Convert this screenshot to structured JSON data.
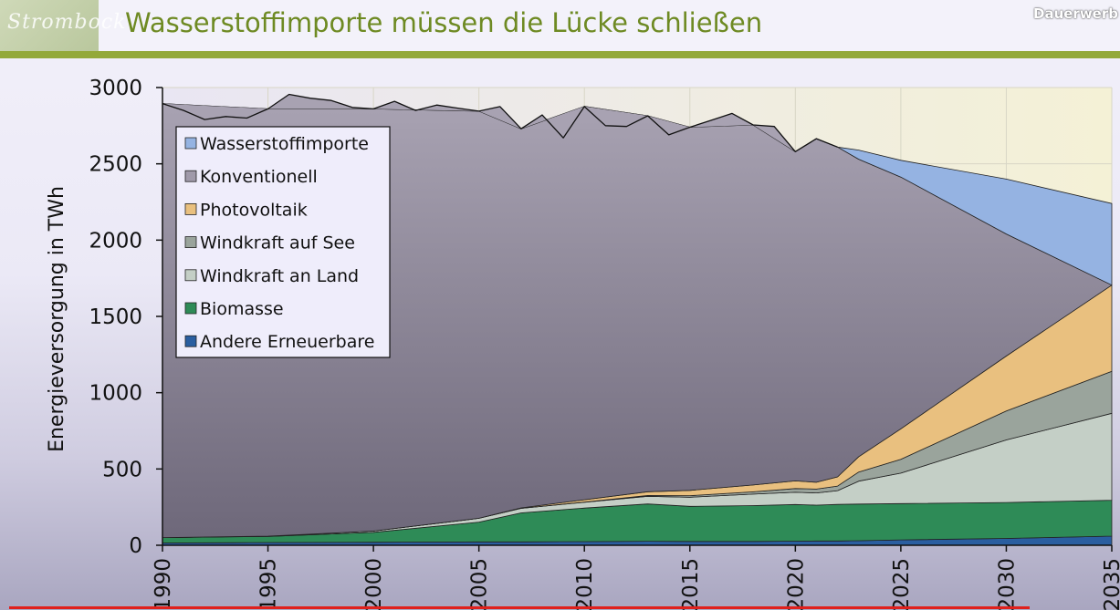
{
  "header": {
    "logo_text": "Strombock",
    "title": "Wasserstoffimporte müssen die Lücke schließen",
    "tag": "Dauerwerb"
  },
  "chart_data": {
    "type": "area",
    "stacked": true,
    "title": "Wasserstoffimporte müssen die Lücke schließen",
    "xlabel": "",
    "ylabel": "Energieversorgung in TWh",
    "xlim": [
      1990,
      2035
    ],
    "ylim": [
      0,
      3000
    ],
    "x_ticks": [
      1990,
      1995,
      2000,
      2005,
      2010,
      2015,
      2020,
      2025,
      2030,
      2035
    ],
    "y_ticks": [
      0,
      500,
      1000,
      1500,
      2000,
      2500,
      3000
    ],
    "grid": true,
    "legend_position": "top-left",
    "total_line": {
      "x": [
        1990,
        1991,
        1992,
        1993,
        1994,
        1995,
        1996,
        1997,
        1998,
        1999,
        2000,
        2001,
        2002,
        2003,
        2004,
        2005,
        2006,
        2007,
        2008,
        2009,
        2010,
        2011,
        2012,
        2013,
        2014,
        2015,
        2016,
        2017,
        2018,
        2019,
        2020,
        2021,
        2022
      ],
      "values": [
        2895,
        2850,
        2790,
        2810,
        2800,
        2860,
        2955,
        2930,
        2915,
        2870,
        2860,
        2910,
        2850,
        2885,
        2865,
        2845,
        2875,
        2730,
        2820,
        2670,
        2875,
        2750,
        2745,
        2815,
        2690,
        2740,
        2785,
        2830,
        2755,
        2745,
        2580,
        2665,
        2610
      ]
    },
    "x": [
      1990,
      1995,
      2000,
      2005,
      2007,
      2010,
      2013,
      2015,
      2018,
      2020,
      2021,
      2022,
      2023,
      2025,
      2030,
      2035
    ],
    "series": [
      {
        "name": "Andere Erneuerbare",
        "color": "#2a5ea0",
        "values": [
          15,
          18,
          20,
          22,
          22,
          24,
          26,
          25,
          25,
          27,
          28,
          28,
          30,
          35,
          45,
          60
        ]
      },
      {
        "name": "Biomasse",
        "color": "#2e8b57",
        "values": [
          35,
          40,
          65,
          130,
          190,
          220,
          245,
          230,
          235,
          240,
          235,
          240,
          240,
          238,
          235,
          235
        ]
      },
      {
        "name": "Windkraft an Land",
        "color": "#c4cfc6",
        "values": [
          0,
          2,
          8,
          25,
          30,
          38,
          50,
          60,
          75,
          80,
          80,
          90,
          150,
          200,
          410,
          570
        ]
      },
      {
        "name": "Windkraft auf See",
        "color": "#9aa49c",
        "values": [
          0,
          0,
          0,
          0,
          0,
          1,
          5,
          10,
          15,
          25,
          25,
          30,
          60,
          90,
          190,
          275
        ]
      },
      {
        "name": "Photovoltaik",
        "color": "#e9c07f",
        "values": [
          0,
          0,
          0,
          0,
          3,
          15,
          25,
          35,
          45,
          50,
          45,
          60,
          100,
          200,
          360,
          565
        ]
      },
      {
        "name": "Konventionell",
        "color": "#a09aaa",
        "values": [
          2845,
          2800,
          2767,
          2668,
          2485,
          2578,
          2464,
          2380,
          2360,
          2158,
          2252,
          2162,
          1950,
          1650,
          800,
          0
        ]
      },
      {
        "name": "Wasserstoffimporte",
        "color": "#95b3e2",
        "values": [
          0,
          0,
          0,
          0,
          0,
          0,
          0,
          0,
          0,
          0,
          0,
          0,
          60,
          110,
          360,
          535
        ]
      }
    ]
  }
}
